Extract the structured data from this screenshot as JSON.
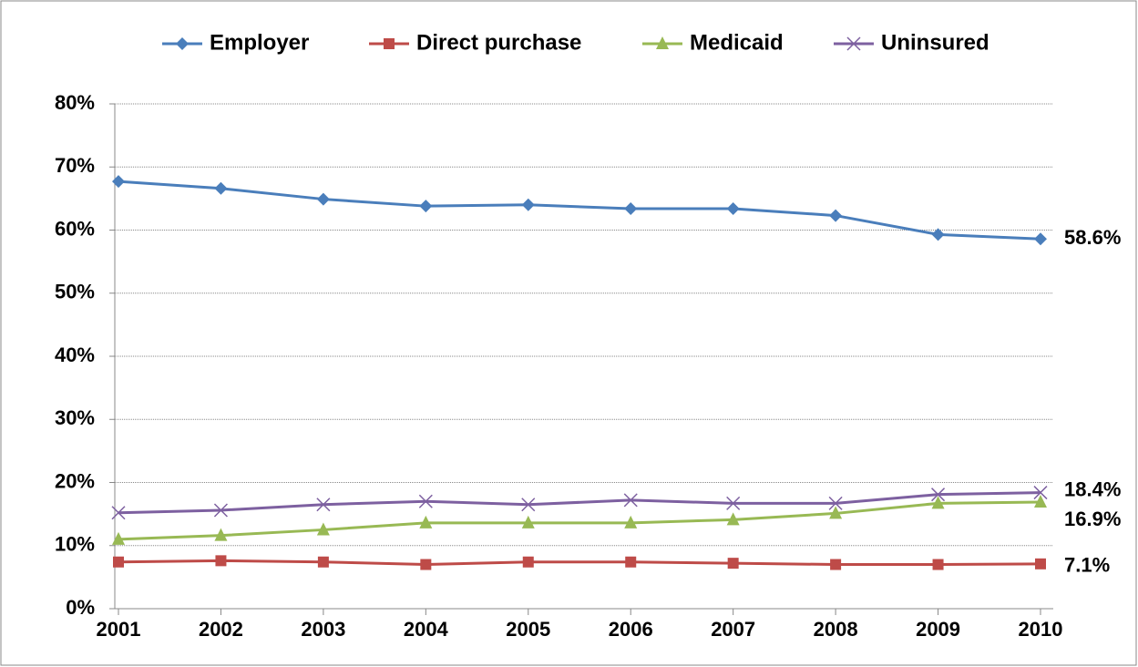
{
  "chart_data": {
    "type": "line",
    "categories": [
      "2001",
      "2002",
      "2003",
      "2004",
      "2005",
      "2006",
      "2007",
      "2008",
      "2009",
      "2010"
    ],
    "series": [
      {
        "name": "Employer",
        "color": "#4a7ebb",
        "marker": "diamond",
        "values": [
          67.7,
          66.6,
          64.9,
          63.8,
          64.0,
          63.4,
          63.4,
          62.3,
          59.3,
          58.6
        ],
        "value_labels": [
          null,
          null,
          null,
          null,
          null,
          null,
          null,
          null,
          null,
          "58.6%"
        ]
      },
      {
        "name": "Direct purchase",
        "color": "#be4b48",
        "marker": "square",
        "values": [
          7.4,
          7.6,
          7.4,
          7.0,
          7.4,
          7.4,
          7.2,
          7.0,
          7.0,
          7.1
        ],
        "value_labels": [
          null,
          null,
          null,
          null,
          null,
          null,
          null,
          null,
          null,
          "7.1%"
        ]
      },
      {
        "name": "Medicaid",
        "color": "#98b954",
        "marker": "triangle",
        "values": [
          11.0,
          11.6,
          12.5,
          13.6,
          13.6,
          13.6,
          14.1,
          15.1,
          16.7,
          16.9
        ],
        "value_labels": [
          null,
          null,
          null,
          null,
          null,
          null,
          null,
          null,
          null,
          "16.9%"
        ]
      },
      {
        "name": "Uninsured",
        "color": "#7d60a0",
        "marker": "x",
        "values": [
          15.2,
          15.6,
          16.5,
          17.0,
          16.5,
          17.2,
          16.7,
          16.7,
          18.1,
          18.4
        ],
        "value_labels": [
          null,
          null,
          null,
          null,
          null,
          null,
          null,
          null,
          null,
          "18.4%"
        ]
      }
    ],
    "ylim": [
      0,
      80
    ],
    "yticks": [
      {
        "value": 0,
        "label": "0%"
      },
      {
        "value": 10,
        "label": "10%"
      },
      {
        "value": 20,
        "label": "20%"
      },
      {
        "value": 30,
        "label": "30%"
      },
      {
        "value": 40,
        "label": "40%"
      },
      {
        "value": 50,
        "label": "50%"
      },
      {
        "value": 60,
        "label": "60%"
      },
      {
        "value": 70,
        "label": "70%"
      },
      {
        "value": 80,
        "label": "80%"
      }
    ],
    "grid": true,
    "legend": "top"
  }
}
